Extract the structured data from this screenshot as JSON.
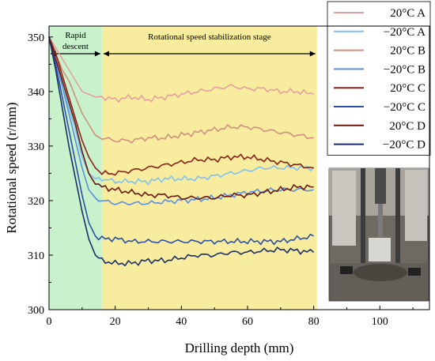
{
  "chart_data": {
    "type": "line",
    "title": "",
    "xlabel": "Drilling depth (mm)",
    "ylabel": "Rotational speed (r/mm)",
    "xlim": [
      0,
      115
    ],
    "ylim": [
      300,
      352
    ],
    "x_ticks": [
      0,
      20,
      40,
      60,
      80,
      100
    ],
    "y_ticks": [
      300,
      310,
      320,
      330,
      340,
      350
    ],
    "grid": false,
    "legend_position": "top-right",
    "stages": [
      {
        "label_lines": [
          "Rapid",
          "descent"
        ],
        "x_range": [
          0,
          16
        ],
        "color": "#c8f2cc"
      },
      {
        "label_lines": [
          "Rotational speed stabilization stage"
        ],
        "x_range": [
          16,
          81
        ],
        "color": "#f8ec9e"
      }
    ],
    "inset_photo": {
      "subject": "drilling test rig"
    },
    "series": [
      {
        "name": "20°C A",
        "color": "#e3a0a2",
        "points": [
          [
            0,
            350
          ],
          [
            2,
            348
          ],
          [
            4,
            346
          ],
          [
            6,
            344
          ],
          [
            8,
            342
          ],
          [
            10,
            340
          ],
          [
            12,
            339.5
          ],
          [
            14,
            339
          ],
          [
            16,
            339
          ],
          [
            20,
            338.5
          ],
          [
            25,
            339
          ],
          [
            30,
            338.5
          ],
          [
            35,
            339
          ],
          [
            40,
            339.5
          ],
          [
            45,
            340
          ],
          [
            50,
            340.5
          ],
          [
            55,
            341
          ],
          [
            60,
            340.5
          ],
          [
            65,
            340.5
          ],
          [
            70,
            340
          ],
          [
            75,
            340
          ],
          [
            80,
            339.5
          ]
        ]
      },
      {
        "name": "−20°C A",
        "color": "#7fc1f2",
        "points": [
          [
            0,
            350
          ],
          [
            2,
            346
          ],
          [
            4,
            341
          ],
          [
            6,
            337
          ],
          [
            8,
            333
          ],
          [
            10,
            328
          ],
          [
            12,
            325
          ],
          [
            14,
            324
          ],
          [
            16,
            324
          ],
          [
            20,
            323.5
          ],
          [
            25,
            323.5
          ],
          [
            30,
            323.5
          ],
          [
            35,
            324
          ],
          [
            40,
            324
          ],
          [
            45,
            324
          ],
          [
            50,
            324.5
          ],
          [
            55,
            325
          ],
          [
            60,
            325.5
          ],
          [
            65,
            326
          ],
          [
            70,
            326
          ],
          [
            75,
            326
          ],
          [
            80,
            326
          ]
        ]
      },
      {
        "name": "20°C B",
        "color": "#d09080",
        "points": [
          [
            0,
            350
          ],
          [
            2,
            347
          ],
          [
            4,
            344
          ],
          [
            6,
            342
          ],
          [
            8,
            339
          ],
          [
            10,
            336
          ],
          [
            12,
            334
          ],
          [
            14,
            332
          ],
          [
            16,
            331.5
          ],
          [
            20,
            331
          ],
          [
            25,
            331
          ],
          [
            30,
            331.5
          ],
          [
            35,
            331.5
          ],
          [
            40,
            332
          ],
          [
            45,
            332.5
          ],
          [
            50,
            333
          ],
          [
            55,
            333.5
          ],
          [
            60,
            333.5
          ],
          [
            65,
            333
          ],
          [
            70,
            332.5
          ],
          [
            75,
            332
          ],
          [
            80,
            331.5
          ]
        ]
      },
      {
        "name": "−20°C B",
        "color": "#5b8fe0",
        "points": [
          [
            0,
            350
          ],
          [
            2,
            346
          ],
          [
            4,
            341
          ],
          [
            6,
            336
          ],
          [
            8,
            331
          ],
          [
            10,
            326
          ],
          [
            12,
            322
          ],
          [
            14,
            320.5
          ],
          [
            16,
            320
          ],
          [
            20,
            319.5
          ],
          [
            25,
            319.5
          ],
          [
            30,
            319.5
          ],
          [
            35,
            319.8
          ],
          [
            40,
            320
          ],
          [
            45,
            320.2
          ],
          [
            50,
            320.5
          ],
          [
            55,
            321
          ],
          [
            60,
            321.5
          ],
          [
            65,
            321.8
          ],
          [
            70,
            322
          ],
          [
            75,
            322
          ],
          [
            80,
            322
          ]
        ]
      },
      {
        "name": "20°C C",
        "color": "#8b2018",
        "points": [
          [
            0,
            350
          ],
          [
            2,
            347
          ],
          [
            4,
            343
          ],
          [
            6,
            339
          ],
          [
            8,
            335
          ],
          [
            10,
            331
          ],
          [
            12,
            328
          ],
          [
            14,
            326
          ],
          [
            16,
            325
          ],
          [
            20,
            325
          ],
          [
            25,
            325.5
          ],
          [
            30,
            326
          ],
          [
            35,
            326.5
          ],
          [
            40,
            327
          ],
          [
            45,
            327.5
          ],
          [
            50,
            327.5
          ],
          [
            55,
            328
          ],
          [
            60,
            328
          ],
          [
            65,
            327.5
          ],
          [
            70,
            327
          ],
          [
            75,
            326.5
          ],
          [
            80,
            326
          ]
        ]
      },
      {
        "name": "−20°C C",
        "color": "#2a4fa8",
        "points": [
          [
            0,
            350
          ],
          [
            2,
            345
          ],
          [
            4,
            339
          ],
          [
            6,
            333
          ],
          [
            8,
            327
          ],
          [
            10,
            321
          ],
          [
            12,
            316
          ],
          [
            14,
            313.5
          ],
          [
            16,
            313
          ],
          [
            20,
            313
          ],
          [
            25,
            312.5
          ],
          [
            30,
            312.5
          ],
          [
            35,
            312.5
          ],
          [
            40,
            312.5
          ],
          [
            45,
            312.5
          ],
          [
            50,
            312.5
          ],
          [
            55,
            312.5
          ],
          [
            60,
            312.5
          ],
          [
            65,
            312.5
          ],
          [
            70,
            312.5
          ],
          [
            75,
            313
          ],
          [
            80,
            313.5
          ]
        ]
      },
      {
        "name": "20°C D",
        "color": "#6a1810",
        "points": [
          [
            0,
            350
          ],
          [
            2,
            346
          ],
          [
            4,
            342
          ],
          [
            6,
            338
          ],
          [
            8,
            334
          ],
          [
            10,
            329
          ],
          [
            12,
            325
          ],
          [
            14,
            323
          ],
          [
            16,
            322.5
          ],
          [
            20,
            322
          ],
          [
            25,
            321.5
          ],
          [
            30,
            321
          ],
          [
            35,
            321
          ],
          [
            40,
            320.5
          ],
          [
            45,
            320.5
          ],
          [
            50,
            320.5
          ],
          [
            55,
            321
          ],
          [
            60,
            321
          ],
          [
            65,
            321.5
          ],
          [
            70,
            322
          ],
          [
            75,
            322.5
          ],
          [
            80,
            322.5
          ]
        ]
      },
      {
        "name": "−20°C D",
        "color": "#1a2e68",
        "points": [
          [
            0,
            350
          ],
          [
            2,
            344
          ],
          [
            4,
            337
          ],
          [
            6,
            330
          ],
          [
            8,
            324
          ],
          [
            10,
            318
          ],
          [
            12,
            313
          ],
          [
            14,
            310
          ],
          [
            16,
            309
          ],
          [
            20,
            308.5
          ],
          [
            25,
            308.5
          ],
          [
            30,
            309
          ],
          [
            35,
            309
          ],
          [
            40,
            309.5
          ],
          [
            45,
            310
          ],
          [
            50,
            310
          ],
          [
            55,
            310.5
          ],
          [
            60,
            310.5
          ],
          [
            65,
            310.8
          ],
          [
            70,
            311
          ],
          [
            75,
            310.8
          ],
          [
            80,
            310.5
          ]
        ]
      }
    ]
  }
}
